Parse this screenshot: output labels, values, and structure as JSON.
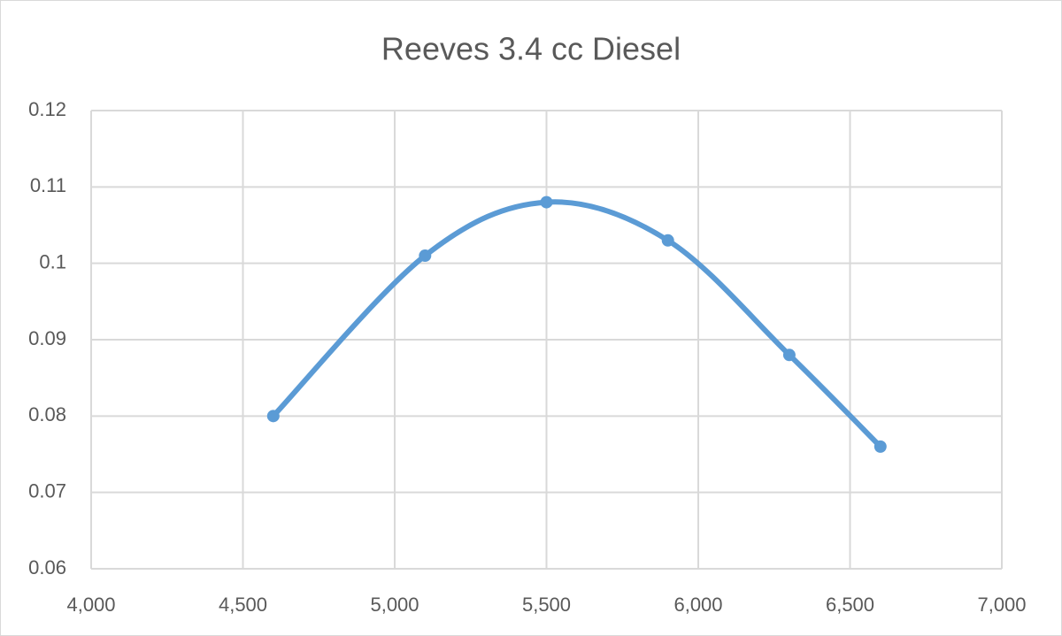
{
  "chart_data": {
    "type": "scatter",
    "title": "Reeves 3.4 cc Diesel",
    "x": [
      4600,
      5100,
      5500,
      5900,
      6300,
      6600
    ],
    "values": [
      0.08,
      0.101,
      0.108,
      0.103,
      0.088,
      0.076
    ],
    "color": "#5b9bd5",
    "smooth": true,
    "grid": true,
    "xlim": [
      4000,
      7000
    ],
    "xticks": [
      {
        "value": 4000,
        "label": "4,000"
      },
      {
        "value": 4500,
        "label": "4,500"
      },
      {
        "value": 5000,
        "label": "5,000"
      },
      {
        "value": 5500,
        "label": "5,500"
      },
      {
        "value": 6000,
        "label": "6,000"
      },
      {
        "value": 6500,
        "label": "6,500"
      },
      {
        "value": 7000,
        "label": "7,000"
      }
    ],
    "ylim": [
      0.06,
      0.12
    ],
    "yticks": [
      0.06,
      0.07,
      0.08,
      0.09,
      0.1,
      0.11,
      0.12
    ]
  }
}
